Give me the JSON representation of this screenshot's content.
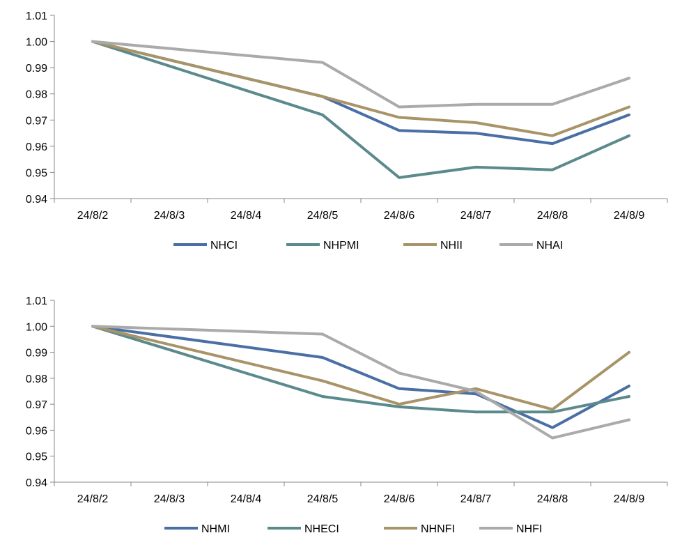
{
  "chart_data": [
    {
      "type": "line",
      "categories": [
        "24/8/2",
        "24/8/3",
        "24/8/4",
        "24/8/5",
        "24/8/6",
        "24/8/7",
        "24/8/8",
        "24/8/9"
      ],
      "ylim": [
        0.94,
        1.01
      ],
      "yticks": [
        "0.94",
        "0.95",
        "0.96",
        "0.97",
        "0.98",
        "0.99",
        "1.00",
        "1.01"
      ],
      "legend_position": "bottom",
      "grid": false,
      "series": [
        {
          "name": "NHCI",
          "color": "#4a6fa5",
          "values": [
            1.0,
            null,
            null,
            0.979,
            0.966,
            0.965,
            0.961,
            0.972
          ]
        },
        {
          "name": "NHPMI",
          "color": "#5b8a8c",
          "values": [
            1.0,
            null,
            null,
            0.972,
            0.948,
            0.952,
            0.951,
            0.964
          ]
        },
        {
          "name": "NHII",
          "color": "#a89468",
          "values": [
            1.0,
            null,
            null,
            0.979,
            0.971,
            0.969,
            0.964,
            0.975
          ]
        },
        {
          "name": "NHAI",
          "color": "#aaaaaa",
          "values": [
            1.0,
            null,
            null,
            0.992,
            0.975,
            0.976,
            0.976,
            0.986
          ]
        }
      ]
    },
    {
      "type": "line",
      "categories": [
        "24/8/2",
        "24/8/3",
        "24/8/4",
        "24/8/5",
        "24/8/6",
        "24/8/7",
        "24/8/8",
        "24/8/9"
      ],
      "ylim": [
        0.94,
        1.01
      ],
      "yticks": [
        "0.94",
        "0.95",
        "0.96",
        "0.97",
        "0.98",
        "0.99",
        "1.00",
        "1.01"
      ],
      "legend_position": "bottom",
      "grid": false,
      "series": [
        {
          "name": "NHMI",
          "color": "#4a6fa5",
          "values": [
            1.0,
            null,
            null,
            0.988,
            0.976,
            0.974,
            0.961,
            0.977
          ]
        },
        {
          "name": "NHECI",
          "color": "#5b8a8c",
          "values": [
            1.0,
            null,
            null,
            0.973,
            0.969,
            0.967,
            0.967,
            0.973
          ]
        },
        {
          "name": "NHNFI",
          "color": "#a89468",
          "values": [
            1.0,
            null,
            null,
            0.979,
            0.97,
            0.976,
            0.968,
            0.99
          ]
        },
        {
          "name": "NHFI",
          "color": "#aaaaaa",
          "values": [
            1.0,
            null,
            null,
            0.997,
            0.982,
            0.975,
            0.957,
            0.964
          ]
        }
      ]
    }
  ]
}
